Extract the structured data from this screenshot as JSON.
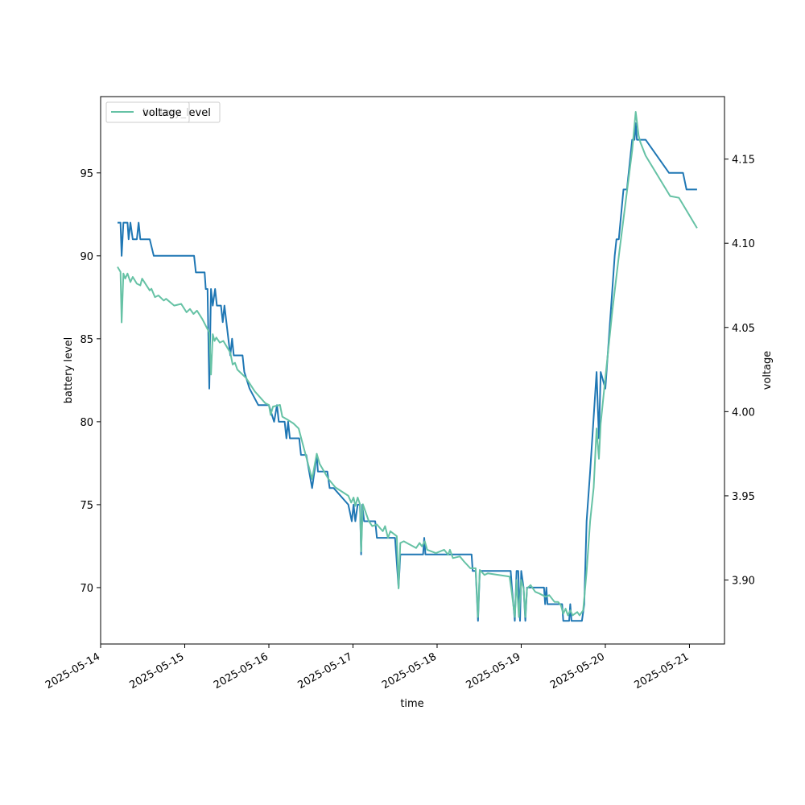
{
  "chart_data": {
    "type": "line",
    "xlabel": "time",
    "ylabel_left": "battery level",
    "ylabel_right": "voltage",
    "xlim": [
      "2025-05-14T00:00",
      "2025-05-21T10:00"
    ],
    "ylim_left": [
      66.6,
      99.6
    ],
    "ylim_right": [
      3.862,
      4.1871
    ],
    "x_ticks": [
      "2025-05-14",
      "2025-05-15",
      "2025-05-16",
      "2025-05-17",
      "2025-05-18",
      "2025-05-19",
      "2025-05-20",
      "2025-05-21"
    ],
    "y_ticks_left": [
      70,
      75,
      80,
      85,
      90,
      95
    ],
    "y_ticks_right": [
      "3.90",
      "3.95",
      "4.00",
      "4.05",
      "4.10",
      "4.15"
    ],
    "legend": {
      "placement": "upper left",
      "entries": [
        "battery_level",
        "voltage"
      ]
    },
    "colors": {
      "battery_level": "#1f77b4",
      "voltage": "#66c2a5"
    },
    "series": [
      {
        "name": "battery_level",
        "axis": "left",
        "points": [
          [
            "2025-05-14T04:50",
            92
          ],
          [
            "2025-05-14T05:40",
            92
          ],
          [
            "2025-05-14T06:00",
            90
          ],
          [
            "2025-05-14T06:30",
            92
          ],
          [
            "2025-05-14T07:40",
            92
          ],
          [
            "2025-05-14T08:00",
            91
          ],
          [
            "2025-05-14T08:30",
            92
          ],
          [
            "2025-05-14T09:10",
            91
          ],
          [
            "2025-05-14T10:20",
            91
          ],
          [
            "2025-05-14T10:50",
            92
          ],
          [
            "2025-05-14T11:20",
            91
          ],
          [
            "2025-05-14T14:00",
            91
          ],
          [
            "2025-05-14T15:10",
            90
          ],
          [
            "2025-05-15T02:40",
            90
          ],
          [
            "2025-05-15T03:10",
            89
          ],
          [
            "2025-05-15T05:40",
            89
          ],
          [
            "2025-05-15T06:00",
            88
          ],
          [
            "2025-05-15T06:30",
            88
          ],
          [
            "2025-05-15T07:00",
            82
          ],
          [
            "2025-05-15T07:30",
            88
          ],
          [
            "2025-05-15T08:00",
            87
          ],
          [
            "2025-05-15T08:40",
            88
          ],
          [
            "2025-05-15T09:10",
            87
          ],
          [
            "2025-05-15T10:20",
            87
          ],
          [
            "2025-05-15T10:50",
            86
          ],
          [
            "2025-05-15T11:20",
            87
          ],
          [
            "2025-05-15T13:00",
            84
          ],
          [
            "2025-05-15T13:30",
            85
          ],
          [
            "2025-05-15T14:00",
            84
          ],
          [
            "2025-05-15T16:30",
            84
          ],
          [
            "2025-05-15T17:00",
            83
          ],
          [
            "2025-05-15T18:30",
            82
          ],
          [
            "2025-05-15T21:00",
            81
          ],
          [
            "2025-05-15T23:10",
            81
          ],
          [
            "2025-05-16T00:00",
            81
          ],
          [
            "2025-05-16T01:30",
            80
          ],
          [
            "2025-05-16T02:20",
            81
          ],
          [
            "2025-05-16T02:50",
            80
          ],
          [
            "2025-05-16T04:30",
            80
          ],
          [
            "2025-05-16T05:00",
            79
          ],
          [
            "2025-05-16T05:30",
            80
          ],
          [
            "2025-05-16T06:00",
            79
          ],
          [
            "2025-05-16T08:40",
            79
          ],
          [
            "2025-05-16T09:10",
            78
          ],
          [
            "2025-05-16T10:40",
            78
          ],
          [
            "2025-05-16T12:20",
            76
          ],
          [
            "2025-05-16T13:40",
            78
          ],
          [
            "2025-05-16T14:00",
            77
          ],
          [
            "2025-05-16T16:40",
            77
          ],
          [
            "2025-05-16T17:20",
            76
          ],
          [
            "2025-05-16T18:30",
            76
          ],
          [
            "2025-05-16T22:40",
            75
          ],
          [
            "2025-05-16T23:40",
            74
          ],
          [
            "2025-05-17T00:10",
            75
          ],
          [
            "2025-05-17T00:40",
            74
          ],
          [
            "2025-05-17T01:20",
            75
          ],
          [
            "2025-05-17T02:00",
            75
          ],
          [
            "2025-05-17T02:20",
            72
          ],
          [
            "2025-05-17T02:40",
            75
          ],
          [
            "2025-05-17T03:10",
            74
          ],
          [
            "2025-05-17T06:20",
            74
          ],
          [
            "2025-05-17T06:50",
            73
          ],
          [
            "2025-05-17T08:00",
            73
          ],
          [
            "2025-05-17T08:30",
            73
          ],
          [
            "2025-05-17T12:00",
            73
          ],
          [
            "2025-05-17T12:20",
            72
          ],
          [
            "2025-05-17T13:00",
            70
          ],
          [
            "2025-05-17T13:30",
            72
          ],
          [
            "2025-05-17T20:00",
            72
          ],
          [
            "2025-05-17T20:20",
            73
          ],
          [
            "2025-05-17T20:40",
            72
          ],
          [
            "2025-05-18T09:50",
            72
          ],
          [
            "2025-05-18T10:10",
            71
          ],
          [
            "2025-05-18T11:00",
            71
          ],
          [
            "2025-05-18T11:40",
            68
          ],
          [
            "2025-05-18T12:10",
            71
          ],
          [
            "2025-05-18T21:00",
            71
          ],
          [
            "2025-05-18T21:20",
            70
          ],
          [
            "2025-05-18T22:10",
            68
          ],
          [
            "2025-05-18T22:40",
            71
          ],
          [
            "2025-05-18T23:10",
            71
          ],
          [
            "2025-05-18T23:40",
            68
          ],
          [
            "2025-05-19T00:00",
            71
          ],
          [
            "2025-05-19T00:40",
            70
          ],
          [
            "2025-05-19T01:10",
            68
          ],
          [
            "2025-05-19T01:40",
            70
          ],
          [
            "2025-05-19T06:30",
            70
          ],
          [
            "2025-05-19T06:50",
            69
          ],
          [
            "2025-05-19T07:10",
            70
          ],
          [
            "2025-05-19T07:30",
            69
          ],
          [
            "2025-05-19T11:40",
            69
          ],
          [
            "2025-05-19T12:00",
            68
          ],
          [
            "2025-05-19T13:40",
            68
          ],
          [
            "2025-05-19T14:00",
            69
          ],
          [
            "2025-05-19T14:20",
            68
          ],
          [
            "2025-05-19T17:20",
            68
          ],
          [
            "2025-05-19T18:00",
            69
          ],
          [
            "2025-05-19T18:40",
            74
          ],
          [
            "2025-05-19T19:40",
            77
          ],
          [
            "2025-05-19T21:30",
            83
          ],
          [
            "2025-05-19T22:10",
            79
          ],
          [
            "2025-05-19T22:40",
            83
          ],
          [
            "2025-05-20T00:00",
            82
          ],
          [
            "2025-05-20T01:20",
            86
          ],
          [
            "2025-05-20T02:40",
            90
          ],
          [
            "2025-05-20T03:10",
            91
          ],
          [
            "2025-05-20T03:50",
            91
          ],
          [
            "2025-05-20T05:10",
            94
          ],
          [
            "2025-05-20T06:10",
            94
          ],
          [
            "2025-05-20T07:40",
            97
          ],
          [
            "2025-05-20T08:20",
            97
          ],
          [
            "2025-05-20T08:40",
            98
          ],
          [
            "2025-05-20T09:00",
            97
          ],
          [
            "2025-05-20T11:30",
            97
          ],
          [
            "2025-05-20T18:10",
            95
          ],
          [
            "2025-05-20T22:10",
            95
          ],
          [
            "2025-05-20T23:10",
            94
          ],
          [
            "2025-05-21T02:10",
            94
          ]
        ]
      },
      {
        "name": "voltage",
        "axis": "right",
        "points": [
          [
            "2025-05-14T04:50",
            4.086
          ],
          [
            "2025-05-14T05:40",
            4.083
          ],
          [
            "2025-05-14T06:00",
            4.053
          ],
          [
            "2025-05-14T06:30",
            4.082
          ],
          [
            "2025-05-14T07:00",
            4.079
          ],
          [
            "2025-05-14T07:40",
            4.082
          ],
          [
            "2025-05-14T08:30",
            4.077
          ],
          [
            "2025-05-14T09:10",
            4.08
          ],
          [
            "2025-05-14T10:20",
            4.076
          ],
          [
            "2025-05-14T11:20",
            4.075
          ],
          [
            "2025-05-14T11:50",
            4.079
          ],
          [
            "2025-05-14T14:00",
            4.072
          ],
          [
            "2025-05-14T14:30",
            4.073
          ],
          [
            "2025-05-14T15:30",
            4.068
          ],
          [
            "2025-05-14T16:30",
            4.069
          ],
          [
            "2025-05-14T18:00",
            4.066
          ],
          [
            "2025-05-14T18:40",
            4.067
          ],
          [
            "2025-05-14T21:00",
            4.063
          ],
          [
            "2025-05-14T23:00",
            4.064
          ],
          [
            "2025-05-15T00:30",
            4.059
          ],
          [
            "2025-05-15T01:30",
            4.061
          ],
          [
            "2025-05-15T02:30",
            4.058
          ],
          [
            "2025-05-15T03:30",
            4.06
          ],
          [
            "2025-05-15T05:00",
            4.055
          ],
          [
            "2025-05-15T06:30",
            4.049
          ],
          [
            "2025-05-15T07:00",
            4.047
          ],
          [
            "2025-05-15T07:30",
            4.022
          ],
          [
            "2025-05-15T08:00",
            4.046
          ],
          [
            "2025-05-15T08:30",
            4.042
          ],
          [
            "2025-05-15T09:00",
            4.044
          ],
          [
            "2025-05-15T10:00",
            4.041
          ],
          [
            "2025-05-15T11:00",
            4.042
          ],
          [
            "2025-05-15T13:00",
            4.035
          ],
          [
            "2025-05-15T13:40",
            4.028
          ],
          [
            "2025-05-15T14:20",
            4.029
          ],
          [
            "2025-05-15T15:00",
            4.025
          ],
          [
            "2025-05-15T17:30",
            4.02
          ],
          [
            "2025-05-15T20:00",
            4.012
          ],
          [
            "2025-05-15T23:00",
            4.005
          ],
          [
            "2025-05-16T00:00",
            4.004
          ],
          [
            "2025-05-16T00:30",
            3.998
          ],
          [
            "2025-05-16T01:10",
            4.003
          ],
          [
            "2025-05-16T03:10",
            4.004
          ],
          [
            "2025-05-16T03:50",
            3.997
          ],
          [
            "2025-05-16T05:30",
            3.995
          ],
          [
            "2025-05-16T07:00",
            3.993
          ],
          [
            "2025-05-16T08:30",
            3.99
          ],
          [
            "2025-05-16T09:30",
            3.982
          ],
          [
            "2025-05-16T12:20",
            3.96
          ],
          [
            "2025-05-16T13:40",
            3.975
          ],
          [
            "2025-05-16T14:30",
            3.969
          ],
          [
            "2025-05-16T17:00",
            3.96
          ],
          [
            "2025-05-16T19:00",
            3.955
          ],
          [
            "2025-05-16T22:40",
            3.95
          ],
          [
            "2025-05-16T23:30",
            3.946
          ],
          [
            "2025-05-17T00:10",
            3.949
          ],
          [
            "2025-05-17T00:40",
            3.944
          ],
          [
            "2025-05-17T01:20",
            3.949
          ],
          [
            "2025-05-17T02:00",
            3.945
          ],
          [
            "2025-05-17T02:20",
            3.917
          ],
          [
            "2025-05-17T02:50",
            3.945
          ],
          [
            "2025-05-17T04:30",
            3.935
          ],
          [
            "2025-05-17T05:30",
            3.932
          ],
          [
            "2025-05-17T06:50",
            3.933
          ],
          [
            "2025-05-17T08:30",
            3.929
          ],
          [
            "2025-05-17T09:10",
            3.932
          ],
          [
            "2025-05-17T10:00",
            3.925
          ],
          [
            "2025-05-17T10:40",
            3.929
          ],
          [
            "2025-05-17T12:30",
            3.926
          ],
          [
            "2025-05-17T13:00",
            3.895
          ],
          [
            "2025-05-17T13:30",
            3.922
          ],
          [
            "2025-05-17T14:30",
            3.923
          ],
          [
            "2025-05-17T18:00",
            3.919
          ],
          [
            "2025-05-17T19:00",
            3.922
          ],
          [
            "2025-05-17T19:40",
            3.92
          ],
          [
            "2025-05-17T20:30",
            3.923
          ],
          [
            "2025-05-17T21:10",
            3.918
          ],
          [
            "2025-05-17T23:40",
            3.916
          ],
          [
            "2025-05-18T02:00",
            3.918
          ],
          [
            "2025-05-18T03:10",
            3.915
          ],
          [
            "2025-05-18T03:40",
            3.918
          ],
          [
            "2025-05-18T04:30",
            3.913
          ],
          [
            "2025-05-18T06:30",
            3.914
          ],
          [
            "2025-05-18T07:40",
            3.911
          ],
          [
            "2025-05-18T09:30",
            3.907
          ],
          [
            "2025-05-18T11:00",
            3.907
          ],
          [
            "2025-05-18T11:40",
            3.878
          ],
          [
            "2025-05-18T12:10",
            3.906
          ],
          [
            "2025-05-18T13:30",
            3.903
          ],
          [
            "2025-05-18T14:30",
            3.904
          ],
          [
            "2025-05-18T20:40",
            3.902
          ],
          [
            "2025-05-18T21:20",
            3.892
          ],
          [
            "2025-05-18T22:10",
            3.878
          ],
          [
            "2025-05-18T22:40",
            3.9
          ],
          [
            "2025-05-18T23:20",
            3.878
          ],
          [
            "2025-05-19T00:00",
            3.9
          ],
          [
            "2025-05-19T00:40",
            3.895
          ],
          [
            "2025-05-19T01:10",
            3.878
          ],
          [
            "2025-05-19T01:40",
            3.895
          ],
          [
            "2025-05-19T02:40",
            3.897
          ],
          [
            "2025-05-19T04:00",
            3.893
          ],
          [
            "2025-05-19T05:10",
            3.892
          ],
          [
            "2025-05-19T07:00",
            3.89
          ],
          [
            "2025-05-19T08:00",
            3.891
          ],
          [
            "2025-05-19T09:30",
            3.887
          ],
          [
            "2025-05-19T10:30",
            3.887
          ],
          [
            "2025-05-19T11:20",
            3.885
          ],
          [
            "2025-05-19T12:00",
            3.88
          ],
          [
            "2025-05-19T12:40",
            3.883
          ],
          [
            "2025-05-19T13:20",
            3.879
          ],
          [
            "2025-05-19T14:00",
            3.882
          ],
          [
            "2025-05-19T14:40",
            3.879
          ],
          [
            "2025-05-19T16:00",
            3.881
          ],
          [
            "2025-05-19T16:40",
            3.879
          ],
          [
            "2025-05-19T17:40",
            3.882
          ],
          [
            "2025-05-19T18:40",
            3.905
          ],
          [
            "2025-05-19T19:40",
            3.935
          ],
          [
            "2025-05-19T20:40",
            3.955
          ],
          [
            "2025-05-19T21:30",
            3.99
          ],
          [
            "2025-05-19T22:10",
            3.972
          ],
          [
            "2025-05-19T22:40",
            3.993
          ],
          [
            "2025-05-20T00:00",
            4.02
          ],
          [
            "2025-05-20T02:00",
            4.06
          ],
          [
            "2025-05-20T04:00",
            4.095
          ],
          [
            "2025-05-20T06:00",
            4.128
          ],
          [
            "2025-05-20T07:40",
            4.155
          ],
          [
            "2025-05-20T08:40",
            4.178
          ],
          [
            "2025-05-20T09:30",
            4.164
          ],
          [
            "2025-05-20T10:00",
            4.16
          ],
          [
            "2025-05-20T11:30",
            4.152
          ],
          [
            "2025-05-20T18:30",
            4.128
          ],
          [
            "2025-05-20T21:00",
            4.127
          ],
          [
            "2025-05-21T02:10",
            4.109
          ]
        ]
      }
    ]
  }
}
